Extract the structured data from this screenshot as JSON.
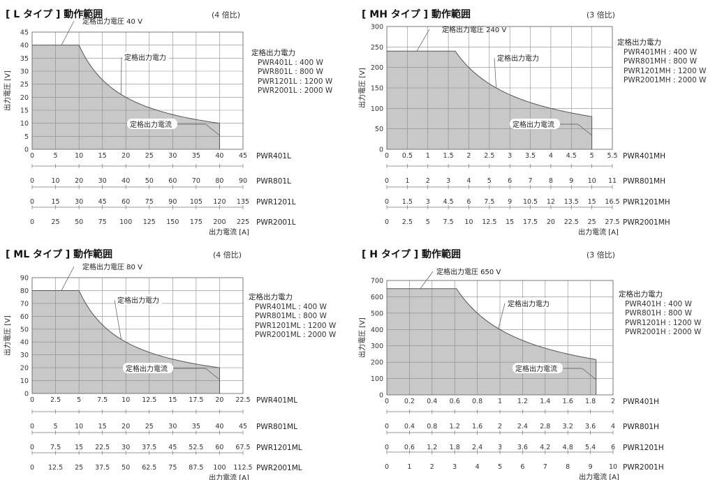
{
  "chart_data": [
    {
      "type": "area",
      "title": "[ L タイプ ] 動作範囲",
      "ratio": "(4 倍比)",
      "ylabel": "出力電圧 [V]",
      "xlabel": "出力電流 [A]",
      "ylim": [
        0,
        45
      ],
      "yticks": [
        "0",
        "5",
        "10",
        "15",
        "20",
        "25",
        "30",
        "35",
        "40",
        "45"
      ],
      "x_axes": [
        {
          "model": "PWR401L",
          "ticks": [
            "0",
            "5",
            "10",
            "15",
            "20",
            "25",
            "30",
            "35",
            "40",
            "45"
          ]
        },
        {
          "model": "PWR801L",
          "ticks": [
            "0",
            "10",
            "20",
            "30",
            "40",
            "50",
            "60",
            "70",
            "80",
            "90"
          ]
        },
        {
          "model": "PWR1201L",
          "ticks": [
            "0",
            "15",
            "30",
            "45",
            "60",
            "75",
            "90",
            "105",
            "120",
            "135"
          ]
        },
        {
          "model": "PWR2001L",
          "ticks": [
            "0",
            "25",
            "50",
            "75",
            "100",
            "125",
            "150",
            "175",
            "200",
            "225"
          ]
        }
      ],
      "xlim": [
        0,
        45
      ],
      "rated_voltage_label": "定格出力電圧  40 V",
      "rated_power_label": "定格出力電力",
      "rated_current_label": "定格出力電流",
      "legend_title": "定格出力電力",
      "legend_items": [
        "PWR401L : 400 W",
        "PWR801L : 800 W",
        "PWR1201L : 1200 W",
        "PWR2001L : 2000 W"
      ],
      "boundary": {
        "v_rated": 40,
        "i_rated": 40,
        "power_first_axis": 400
      },
      "colors": {
        "fill": "#c8c8c8",
        "line": "#555555",
        "grid": "#888888"
      }
    },
    {
      "type": "area",
      "title": "[ MH タイプ ] 動作範囲",
      "ratio": "(3 倍比)",
      "ylabel": "出力電圧 [V]",
      "xlabel": "出力電流 [A]",
      "ylim": [
        0,
        300
      ],
      "yticks": [
        "0",
        "50",
        "100",
        "150",
        "200",
        "250",
        "300"
      ],
      "x_axes": [
        {
          "model": "PWR401MH",
          "ticks": [
            "0",
            "0.5",
            "1",
            "1.5",
            "2",
            "2.5",
            "3",
            "3.5",
            "4",
            "4.5",
            "5",
            "5.5"
          ]
        },
        {
          "model": "PWR801MH",
          "ticks": [
            "0",
            "1",
            "2",
            "3",
            "4",
            "5",
            "6",
            "7",
            "8",
            "9",
            "10",
            "11"
          ]
        },
        {
          "model": "PWR1201MH",
          "ticks": [
            "0",
            "1.5",
            "3",
            "4.5",
            "6",
            "7.5",
            "9",
            "10.5",
            "12",
            "13.5",
            "15",
            "16.5"
          ]
        },
        {
          "model": "PWR2001MH",
          "ticks": [
            "0",
            "2.5",
            "5",
            "7.5",
            "10",
            "12.5",
            "15",
            "17.5",
            "20",
            "22.5",
            "25",
            "27.5"
          ]
        }
      ],
      "xlim": [
        0,
        5.5
      ],
      "rated_voltage_label": "定格出力電圧  240 V",
      "rated_power_label": "定格出力電力",
      "rated_current_label": "定格出力電流",
      "legend_title": "定格出力電力",
      "legend_items": [
        "PWR401MH : 400 W",
        "PWR801MH : 800 W",
        "PWR1201MH : 1200 W",
        "PWR2001MH : 2000 W"
      ],
      "boundary": {
        "v_rated": 240,
        "i_rated": 5,
        "power_first_axis": 400
      },
      "colors": {
        "fill": "#c8c8c8",
        "line": "#555555",
        "grid": "#888888"
      }
    },
    {
      "type": "area",
      "title": "[ ML タイプ ] 動作範囲",
      "ratio": "(4 倍比)",
      "ylabel": "出力電圧 [V]",
      "xlabel": "出力電流 [A]",
      "ylim": [
        0,
        90
      ],
      "yticks": [
        "0",
        "10",
        "20",
        "30",
        "40",
        "50",
        "60",
        "70",
        "80",
        "90"
      ],
      "x_axes": [
        {
          "model": "PWR401ML",
          "ticks": [
            "0",
            "2.5",
            "5",
            "7.5",
            "10",
            "12.5",
            "15",
            "17.5",
            "20",
            "22.5"
          ]
        },
        {
          "model": "PWR801ML",
          "ticks": [
            "0",
            "5",
            "10",
            "15",
            "20",
            "25",
            "30",
            "35",
            "40",
            "45"
          ]
        },
        {
          "model": "PWR1201ML",
          "ticks": [
            "0",
            "7.5",
            "15",
            "22.5",
            "30",
            "37.5",
            "45",
            "52.5",
            "60",
            "67.5"
          ]
        },
        {
          "model": "PWR2001ML",
          "ticks": [
            "0",
            "12.5",
            "25",
            "37.5",
            "50",
            "62.5",
            "75",
            "87.5",
            "100",
            "112.5"
          ]
        }
      ],
      "xlim": [
        0,
        22.5
      ],
      "rated_voltage_label": "定格出力電圧  80 V",
      "rated_power_label": "定格出力電力",
      "rated_current_label": "定格出力電流",
      "legend_title": "定格出力電力",
      "legend_items": [
        "PWR401ML : 400 W",
        "PWR801ML : 800 W",
        "PWR1201ML : 1200 W",
        "PWR2001ML : 2000 W"
      ],
      "boundary": {
        "v_rated": 80,
        "i_rated": 20,
        "power_first_axis": 400
      },
      "colors": {
        "fill": "#c8c8c8",
        "line": "#555555",
        "grid": "#888888"
      }
    },
    {
      "type": "area",
      "title": "[ H タイプ ] 動作範囲",
      "ratio": "(3 倍比)",
      "ylabel": "出力電圧 [V]",
      "xlabel": "出力電流 [A]",
      "ylim": [
        0,
        700
      ],
      "yticks": [
        "0",
        "100",
        "200",
        "300",
        "400",
        "500",
        "600",
        "700"
      ],
      "x_axes": [
        {
          "model": "PWR401H",
          "ticks": [
            "0",
            "0.2",
            "0.4",
            "0.6",
            "0.8",
            "1",
            "1.2",
            "1.4",
            "1.6",
            "1.8",
            "2"
          ]
        },
        {
          "model": "PWR801H",
          "ticks": [
            "0",
            "0.4",
            "0.8",
            "1.2",
            "1.6",
            "2",
            "2.4",
            "2.8",
            "3.2",
            "3.6",
            "4"
          ]
        },
        {
          "model": "PWR1201H",
          "ticks": [
            "0",
            "0.6",
            "1.2",
            "1.8",
            "2.4",
            "3",
            "3.6",
            "4.2",
            "4.8",
            "5.4",
            "6"
          ]
        },
        {
          "model": "PWR2001H",
          "ticks": [
            "0",
            "1",
            "2",
            "3",
            "4",
            "5",
            "6",
            "7",
            "8",
            "9",
            "10"
          ]
        }
      ],
      "xlim": [
        0,
        2
      ],
      "rated_voltage_label": "定格出力電圧  650 V",
      "rated_power_label": "定格出力電力",
      "rated_current_label": "定格出力電流",
      "legend_title": "定格出力電力",
      "legend_items": [
        "PWR401H : 400 W",
        "PWR801H : 800 W",
        "PWR1201H : 1200 W",
        "PWR2001H : 2000 W"
      ],
      "boundary": {
        "v_rated": 650,
        "i_rated": 1.85,
        "power_first_axis": 400
      },
      "colors": {
        "fill": "#c8c8c8",
        "line": "#555555",
        "grid": "#888888"
      }
    }
  ]
}
